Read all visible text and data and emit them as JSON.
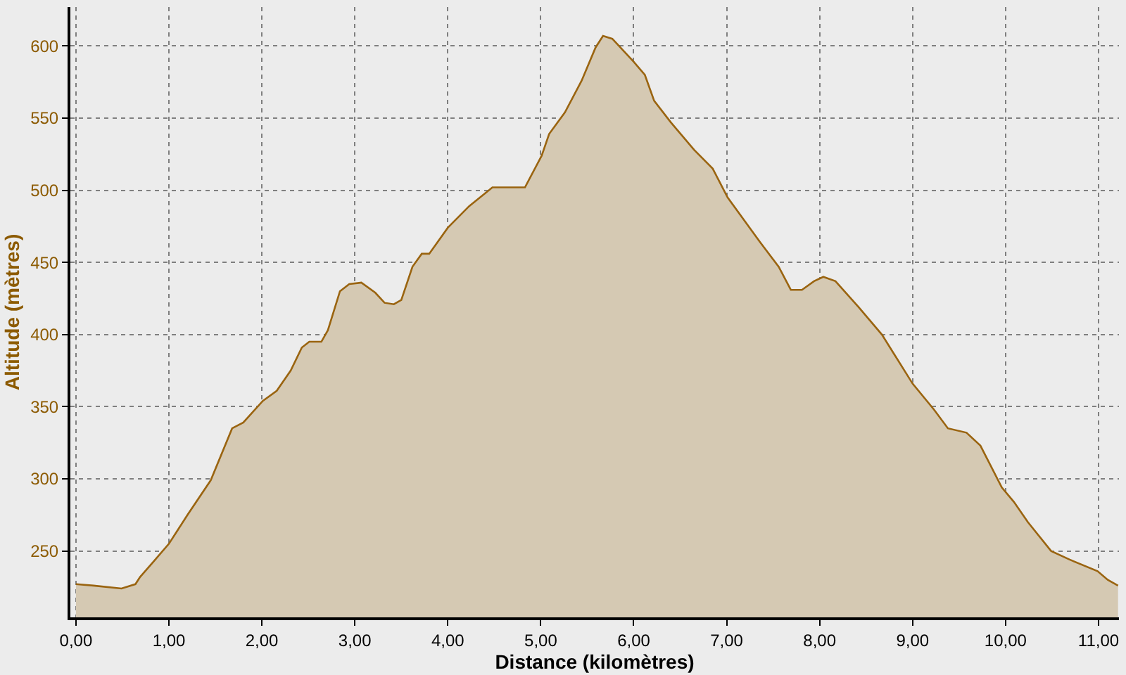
{
  "chart_data": {
    "type": "area",
    "xlabel": "Distance (kilomètres)",
    "ylabel": "Altitude (mètres)",
    "x": [
      0,
      0.19,
      0.49,
      0.64,
      0.69,
      0.84,
      1.0,
      1.2,
      1.45,
      1.68,
      1.8,
      2.01,
      2.16,
      2.31,
      2.43,
      2.51,
      2.64,
      2.71,
      2.84,
      2.94,
      3.07,
      3.22,
      3.32,
      3.42,
      3.5,
      3.62,
      3.72,
      3.8,
      4.0,
      4.23,
      4.48,
      4.63,
      4.83,
      5.01,
      5.09,
      5.26,
      5.44,
      5.59,
      5.67,
      5.77,
      6.0,
      6.12,
      6.22,
      6.4,
      6.65,
      6.85,
      7.01,
      7.36,
      7.56,
      7.69,
      7.81,
      7.94,
      8.04,
      8.17,
      8.42,
      8.67,
      9.0,
      9.23,
      9.38,
      9.58,
      9.73,
      9.96,
      10.09,
      10.24,
      10.49,
      10.69,
      10.99,
      11.1,
      11.21
    ],
    "series": [
      {
        "color": "#d5c9b3",
        "values": [
          227,
          226,
          224,
          227,
          232,
          243,
          255,
          275,
          299,
          335,
          339,
          354,
          361,
          375,
          391,
          395,
          395,
          403,
          430,
          435,
          436,
          429,
          422,
          421,
          424,
          447,
          456,
          456,
          474,
          489,
          502,
          502,
          502,
          524,
          539,
          554,
          576,
          599,
          607,
          605,
          589,
          580,
          562,
          547,
          528,
          515,
          495,
          464,
          447,
          431,
          431,
          437,
          440,
          437,
          419,
          400,
          366,
          348,
          335,
          332,
          323,
          294,
          284,
          270,
          250,
          244,
          236,
          230,
          226
        ]
      }
    ],
    "xlim": [
      -0.06,
      11.22
    ],
    "ylim": [
      204,
      627
    ],
    "xticks": [
      {
        "value": 0,
        "label": "0,00"
      },
      {
        "value": 1,
        "label": "1,00"
      },
      {
        "value": 2,
        "label": "2,00"
      },
      {
        "value": 3,
        "label": "3,00"
      },
      {
        "value": 4,
        "label": "4,00"
      },
      {
        "value": 5,
        "label": "5,00"
      },
      {
        "value": 6,
        "label": "6,00"
      },
      {
        "value": 7,
        "label": "7,00"
      },
      {
        "value": 8,
        "label": "8,00"
      },
      {
        "value": 9,
        "label": "9,00"
      },
      {
        "value": 10,
        "label": "10,00"
      },
      {
        "value": 11,
        "label": "11,00"
      }
    ],
    "yticks": [
      250,
      300,
      350,
      400,
      450,
      500,
      550,
      600
    ],
    "grid": true
  }
}
